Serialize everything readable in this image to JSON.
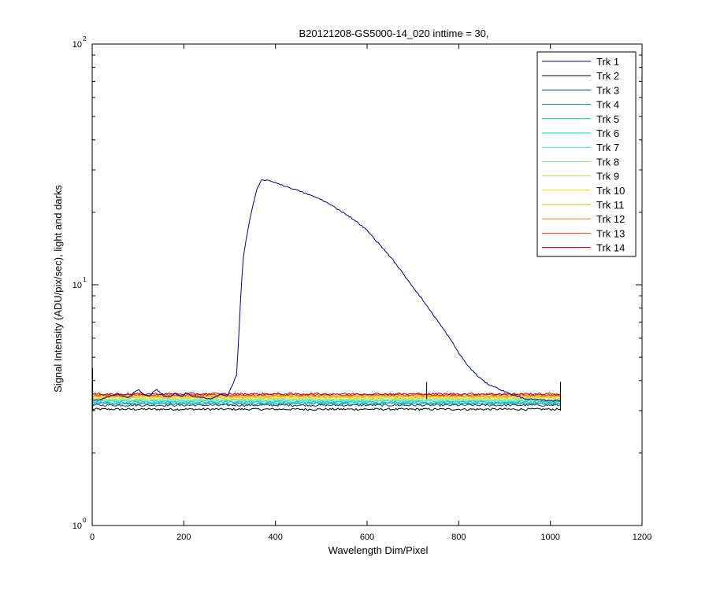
{
  "chart_data": {
    "type": "line",
    "title": "B20121208-GS5000-14_020 inttime = 30,",
    "xlabel": "Wavelength Dim/Pixel",
    "ylabel": "Signal Intensity (ADU/pix/sec), light and darks",
    "xlim": [
      0,
      1200
    ],
    "ylim": [
      1,
      100
    ],
    "yscale": "log",
    "grid": false,
    "legend_position": "top-right",
    "x_ticks": [
      "0",
      "200",
      "400",
      "600",
      "800",
      "1000",
      "1200"
    ],
    "y_ticks": [
      {
        "base": "10",
        "exp": "0"
      },
      {
        "base": "10",
        "exp": "1"
      },
      {
        "base": "10",
        "exp": "2"
      }
    ],
    "series": [
      {
        "name": "Trk 1",
        "color": "#00008F",
        "baseline": 3.13,
        "peak_profile": [
          [
            0,
            3.3
          ],
          [
            20,
            3.35
          ],
          [
            40,
            3.45
          ],
          [
            55,
            3.52
          ],
          [
            65,
            3.45
          ],
          [
            80,
            3.4
          ],
          [
            90,
            3.55
          ],
          [
            100,
            3.68
          ],
          [
            112,
            3.5
          ],
          [
            125,
            3.45
          ],
          [
            140,
            3.68
          ],
          [
            155,
            3.45
          ],
          [
            168,
            3.4
          ],
          [
            180,
            3.55
          ],
          [
            195,
            3.42
          ],
          [
            205,
            3.55
          ],
          [
            220,
            3.45
          ],
          [
            240,
            3.4
          ],
          [
            260,
            3.35
          ],
          [
            280,
            3.5
          ],
          [
            295,
            3.45
          ],
          [
            305,
            3.8
          ],
          [
            315,
            4.2
          ],
          [
            320,
            6
          ],
          [
            325,
            9.5
          ],
          [
            330,
            13
          ],
          [
            340,
            17
          ],
          [
            350,
            21
          ],
          [
            360,
            25
          ],
          [
            370,
            27.3
          ],
          [
            380,
            27.2
          ],
          [
            400,
            26.6
          ],
          [
            420,
            25.7
          ],
          [
            440,
            25
          ],
          [
            460,
            24.2
          ],
          [
            480,
            23.4
          ],
          [
            500,
            22.6
          ],
          [
            520,
            21.5
          ],
          [
            540,
            20.4
          ],
          [
            560,
            19.3
          ],
          [
            580,
            18.1
          ],
          [
            600,
            16.8
          ],
          [
            620,
            15.2
          ],
          [
            640,
            13.8
          ],
          [
            660,
            12.4
          ],
          [
            680,
            11
          ],
          [
            700,
            9.8
          ],
          [
            720,
            8.7
          ],
          [
            740,
            7.7
          ],
          [
            760,
            6.8
          ],
          [
            780,
            6
          ],
          [
            800,
            5.2
          ],
          [
            820,
            4.6
          ],
          [
            840,
            4.2
          ],
          [
            860,
            3.9
          ],
          [
            880,
            3.75
          ],
          [
            900,
            3.6
          ],
          [
            920,
            3.48
          ],
          [
            935,
            3.4
          ],
          [
            950,
            3.35
          ],
          [
            975,
            3.32
          ],
          [
            1000,
            3.3
          ],
          [
            1024,
            3.3
          ]
        ]
      },
      {
        "name": "Trk 2",
        "color": "#000000",
        "baseline": 3.04
      },
      {
        "name": "Trk 3",
        "color": "#003F7F",
        "baseline": 3.16
      },
      {
        "name": "Trk 4",
        "color": "#007F7F",
        "baseline": 3.21
      },
      {
        "name": "Trk 5",
        "color": "#00BFBF",
        "baseline": 3.25
      },
      {
        "name": "Trk 6",
        "color": "#00D8D8",
        "baseline": 3.28
      },
      {
        "name": "Trk 7",
        "color": "#3FE5D0",
        "baseline": 3.31
      },
      {
        "name": "Trk 8",
        "color": "#7FE57F",
        "baseline": 3.34
      },
      {
        "name": "Trk 9",
        "color": "#BFE54F",
        "baseline": 3.37
      },
      {
        "name": "Trk 10",
        "color": "#E5E500",
        "baseline": 3.4
      },
      {
        "name": "Trk 11",
        "color": "#E5B200",
        "baseline": 3.43
      },
      {
        "name": "Trk 12",
        "color": "#FF7F00",
        "baseline": 3.46
      },
      {
        "name": "Trk 13",
        "color": "#E53F00",
        "baseline": 3.49
      },
      {
        "name": "Trk 14",
        "color": "#BF0000",
        "baseline": 3.52
      }
    ]
  }
}
